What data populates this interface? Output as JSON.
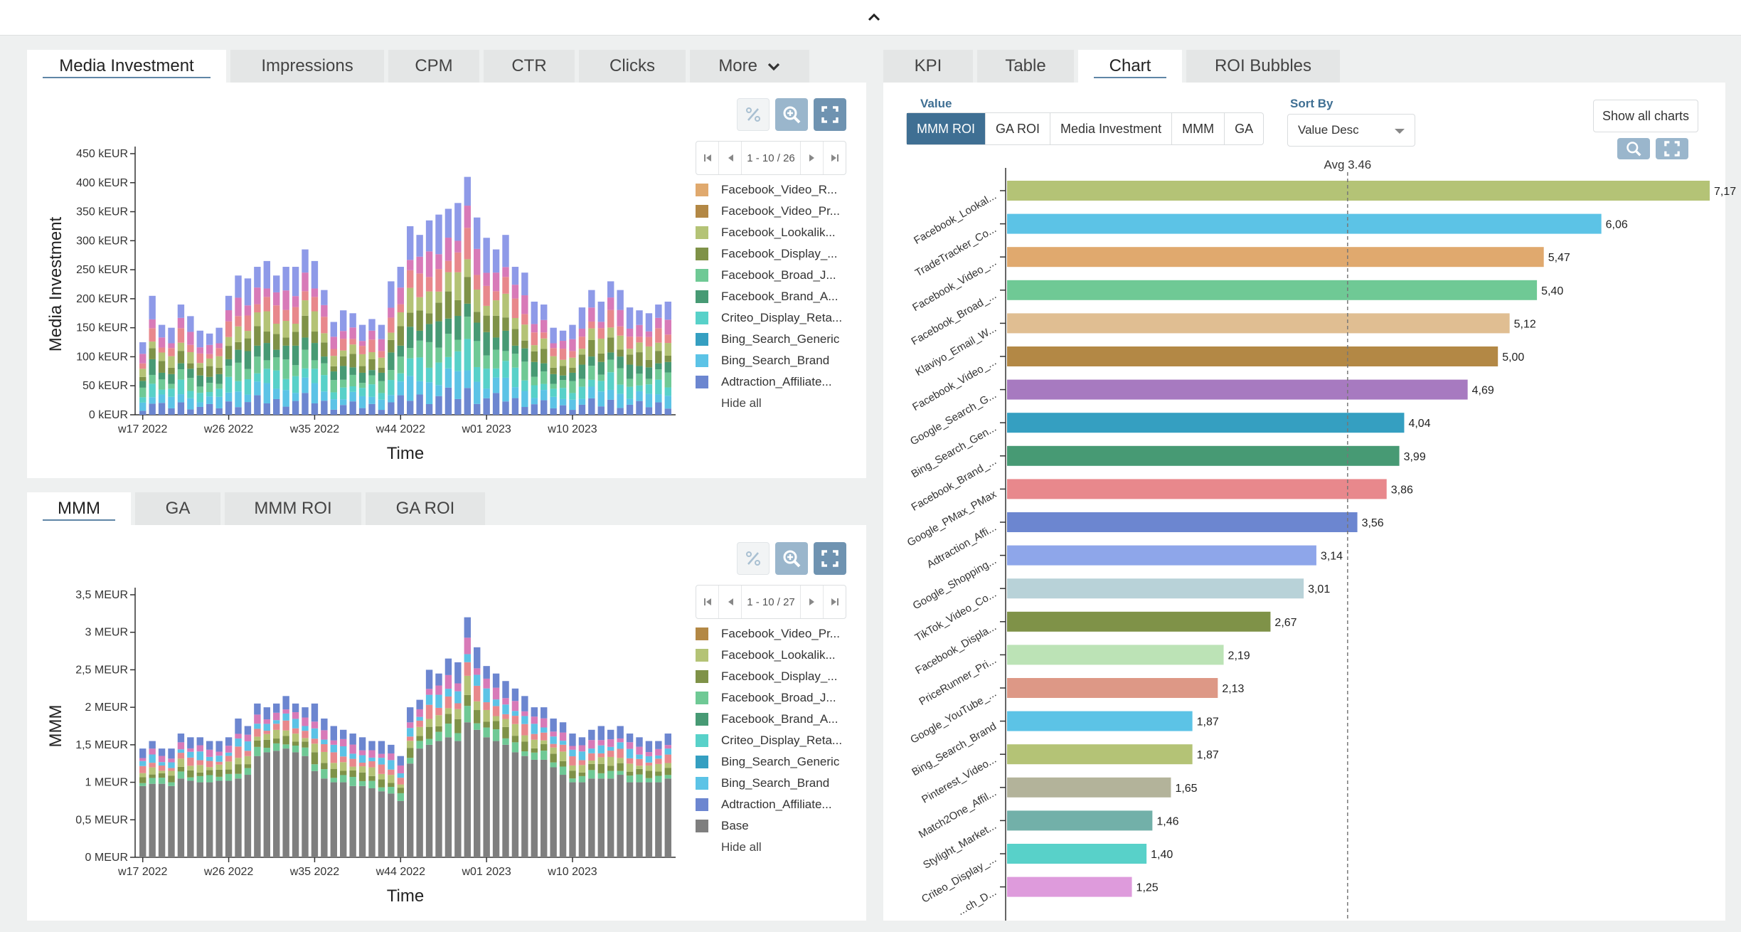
{
  "top_tabs": [
    "Media Investment",
    "Impressions",
    "CPM",
    "CTR",
    "Clicks",
    "More"
  ],
  "bottom_tabs": [
    "MMM",
    "GA",
    "MMM ROI",
    "GA ROI"
  ],
  "right_tabs": [
    "KPI",
    "Table",
    "Chart",
    "ROI Bubbles"
  ],
  "value_label": "Value",
  "value_options": [
    "MMM ROI",
    "GA ROI",
    "Media Investment",
    "MMM",
    "GA"
  ],
  "sort_label": "Sort By",
  "sort_value": "Value Desc",
  "show_all_label": "Show all charts",
  "pager_top": "1 - 10 / 26",
  "pager_bottom": "1 - 10 / 27",
  "hide_all": "Hide all",
  "colors": {
    "accent": "#3f6f93",
    "base": "#7f7f7f"
  },
  "chart_data": [
    {
      "type": "bar",
      "stacked": true,
      "title": "",
      "ylabel": "Media Investment",
      "xlabel": "Time",
      "ylim": [
        0,
        450
      ],
      "y_ticks": [
        0,
        50,
        100,
        150,
        200,
        250,
        300,
        350,
        400,
        450
      ],
      "y_tick_labels": [
        "0 kEUR",
        "50 kEUR",
        "100 kEUR",
        "150 kEUR",
        "200 kEUR",
        "250 kEUR",
        "300 kEUR",
        "350 kEUR",
        "400 kEUR",
        "450 kEUR"
      ],
      "x_tick_labels": [
        "w17 2022",
        "w26 2022",
        "w35 2022",
        "w44 2022",
        "w01 2023",
        "w10 2023"
      ],
      "x_tick_index": [
        0,
        9,
        18,
        27,
        36,
        45
      ],
      "legend": [
        {
          "name": "Facebook_Video_R...",
          "color": "#e0a96e"
        },
        {
          "name": "Facebook_Video_Pr...",
          "color": "#b38845"
        },
        {
          "name": "Facebook_Lookalik...",
          "color": "#b4c376"
        },
        {
          "name": "Facebook_Display_...",
          "color": "#7f9248"
        },
        {
          "name": "Facebook_Broad_J...",
          "color": "#6fc995"
        },
        {
          "name": "Facebook_Brand_A...",
          "color": "#479a74"
        },
        {
          "name": "Criteo_Display_Reta...",
          "color": "#58d1c9"
        },
        {
          "name": "Bing_Search_Generic",
          "color": "#359fc1"
        },
        {
          "name": "Bing_Search_Brand",
          "color": "#5cc3e6"
        },
        {
          "name": "Adtraction_Affiliate...",
          "color": "#6c86d0"
        }
      ],
      "stack_colors": [
        "#6c86d0",
        "#5cc3e6",
        "#58d1c9",
        "#6fc995",
        "#479a74",
        "#7f9248",
        "#b4c376",
        "#e8888c",
        "#d87ab8",
        "#8e9ae8"
      ],
      "totals": [
        125,
        205,
        155,
        150,
        190,
        170,
        145,
        140,
        150,
        205,
        240,
        235,
        255,
        265,
        240,
        255,
        255,
        285,
        265,
        215,
        160,
        180,
        175,
        155,
        165,
        155,
        230,
        255,
        325,
        310,
        335,
        345,
        355,
        365,
        410,
        340,
        305,
        285,
        310,
        255,
        245,
        195,
        190,
        150,
        145,
        155,
        185,
        215,
        195,
        230,
        215,
        185,
        180,
        175,
        190,
        195
      ]
    },
    {
      "type": "bar",
      "stacked": true,
      "title": "",
      "ylabel": "MMM",
      "xlabel": "Time",
      "ylim": [
        0,
        3.5
      ],
      "y_ticks": [
        0,
        0.5,
        1,
        1.5,
        2,
        2.5,
        3,
        3.5
      ],
      "y_tick_labels": [
        "0 MEUR",
        "0,5 MEUR",
        "1 MEUR",
        "1,5 MEUR",
        "2 MEUR",
        "2,5 MEUR",
        "3 MEUR",
        "3,5 MEUR"
      ],
      "x_tick_labels": [
        "w17 2022",
        "w26 2022",
        "w35 2022",
        "w44 2022",
        "w01 2023",
        "w10 2023"
      ],
      "x_tick_index": [
        0,
        9,
        18,
        27,
        36,
        45
      ],
      "legend": [
        {
          "name": "Facebook_Video_Pr...",
          "color": "#b38845"
        },
        {
          "name": "Facebook_Lookalik...",
          "color": "#b4c376"
        },
        {
          "name": "Facebook_Display_...",
          "color": "#7f9248"
        },
        {
          "name": "Facebook_Broad_J...",
          "color": "#6fc995"
        },
        {
          "name": "Facebook_Brand_A...",
          "color": "#479a74"
        },
        {
          "name": "Criteo_Display_Reta...",
          "color": "#58d1c9"
        },
        {
          "name": "Bing_Search_Generic",
          "color": "#359fc1"
        },
        {
          "name": "Bing_Search_Brand",
          "color": "#5cc3e6"
        },
        {
          "name": "Adtraction_Affiliate...",
          "color": "#6c86d0"
        },
        {
          "name": "Base",
          "color": "#7f7f7f"
        }
      ],
      "stack_colors": [
        "#6fc995",
        "#7f9248",
        "#b4c376",
        "#e8888c",
        "#5cc3e6",
        "#d87ab8",
        "#6c86d0"
      ],
      "base": [
        0.95,
        0.98,
        0.98,
        0.95,
        1.05,
        1.02,
        1.0,
        1.0,
        1.02,
        1.02,
        1.05,
        1.1,
        1.35,
        1.4,
        1.42,
        1.45,
        1.4,
        1.35,
        1.15,
        1.05,
        1.0,
        1.0,
        0.95,
        0.95,
        0.92,
        0.88,
        0.85,
        0.75,
        1.25,
        1.45,
        1.5,
        1.55,
        1.6,
        1.55,
        1.8,
        1.7,
        1.6,
        1.55,
        1.5,
        1.4,
        1.35,
        1.3,
        1.3,
        1.2,
        1.1,
        1.0,
        1.0,
        1.05,
        1.05,
        1.05,
        1.1,
        1.0,
        1.0,
        1.0,
        1.0,
        1.05
      ],
      "totals": [
        1.45,
        1.55,
        1.45,
        1.45,
        1.65,
        1.6,
        1.6,
        1.55,
        1.55,
        1.6,
        1.85,
        1.75,
        2.05,
        2.0,
        2.05,
        2.15,
        2.05,
        2.0,
        2.05,
        1.85,
        1.75,
        1.7,
        1.65,
        1.6,
        1.55,
        1.55,
        1.5,
        1.35,
        2.0,
        2.1,
        2.5,
        2.45,
        2.65,
        2.6,
        3.2,
        2.8,
        2.55,
        2.45,
        2.35,
        2.25,
        2.15,
        2.0,
        2.0,
        1.85,
        1.8,
        1.65,
        1.6,
        1.7,
        1.75,
        1.7,
        1.75,
        1.65,
        1.6,
        1.55,
        1.55,
        1.65
      ]
    },
    {
      "type": "bar",
      "orientation": "horizontal",
      "title": "",
      "average_line": 3.46,
      "average_label": "Avg 3.46",
      "xlim": [
        0,
        7.17
      ],
      "categories": [
        "Facebook_Lookal...",
        "TradeTracker_Co...",
        "Facebook_Video_...",
        "Facebook_Broad_...",
        "Klaviyo_Email_W...",
        "Facebook_Video_...",
        "Google_Search_G...",
        "Bing_Search_Gen...",
        "Facebook_Brand_...",
        "Google_PMax_PMax",
        "Adtraction_Affi...",
        "Google_Shopping...",
        "TikTok_Video_Co...",
        "Facebook_Displa...",
        "PriceRunner_Pri...",
        "Google_YouTube_...",
        "Bing_Search_Brand",
        "Pinterest_Video...",
        "Match2One_Affil...",
        "Stylight_Market...",
        "Criteo_Display_...",
        "...ch_D..."
      ],
      "values": [
        7.17,
        6.06,
        5.47,
        5.4,
        5.12,
        5.0,
        4.69,
        4.04,
        3.99,
        3.86,
        3.56,
        3.14,
        3.01,
        2.67,
        2.19,
        2.13,
        1.87,
        1.87,
        1.65,
        1.46,
        1.4,
        1.25
      ],
      "value_labels": [
        "7,17",
        "6,06",
        "5,47",
        "5,40",
        "5,12",
        "5,00",
        "4,69",
        "4,04",
        "3,99",
        "3,86",
        "3,56",
        "3,14",
        "3,01",
        "2,67",
        "2,19",
        "2,13",
        "1,87",
        "1,87",
        "1,65",
        "1,46",
        "1,40",
        "1,25"
      ],
      "colors": [
        "#b4c376",
        "#5cc3e6",
        "#e0a96e",
        "#6fc995",
        "#e0be92",
        "#b38845",
        "#a77ac0",
        "#359fc1",
        "#479a74",
        "#e8888c",
        "#6c86d0",
        "#8ea6ea",
        "#b8d2d8",
        "#7f9248",
        "#bce3b6",
        "#dd9886",
        "#5cc3e6",
        "#b4c376",
        "#b3b39a",
        "#72b0a9",
        "#58d1c9",
        "#de9bdc"
      ]
    }
  ]
}
